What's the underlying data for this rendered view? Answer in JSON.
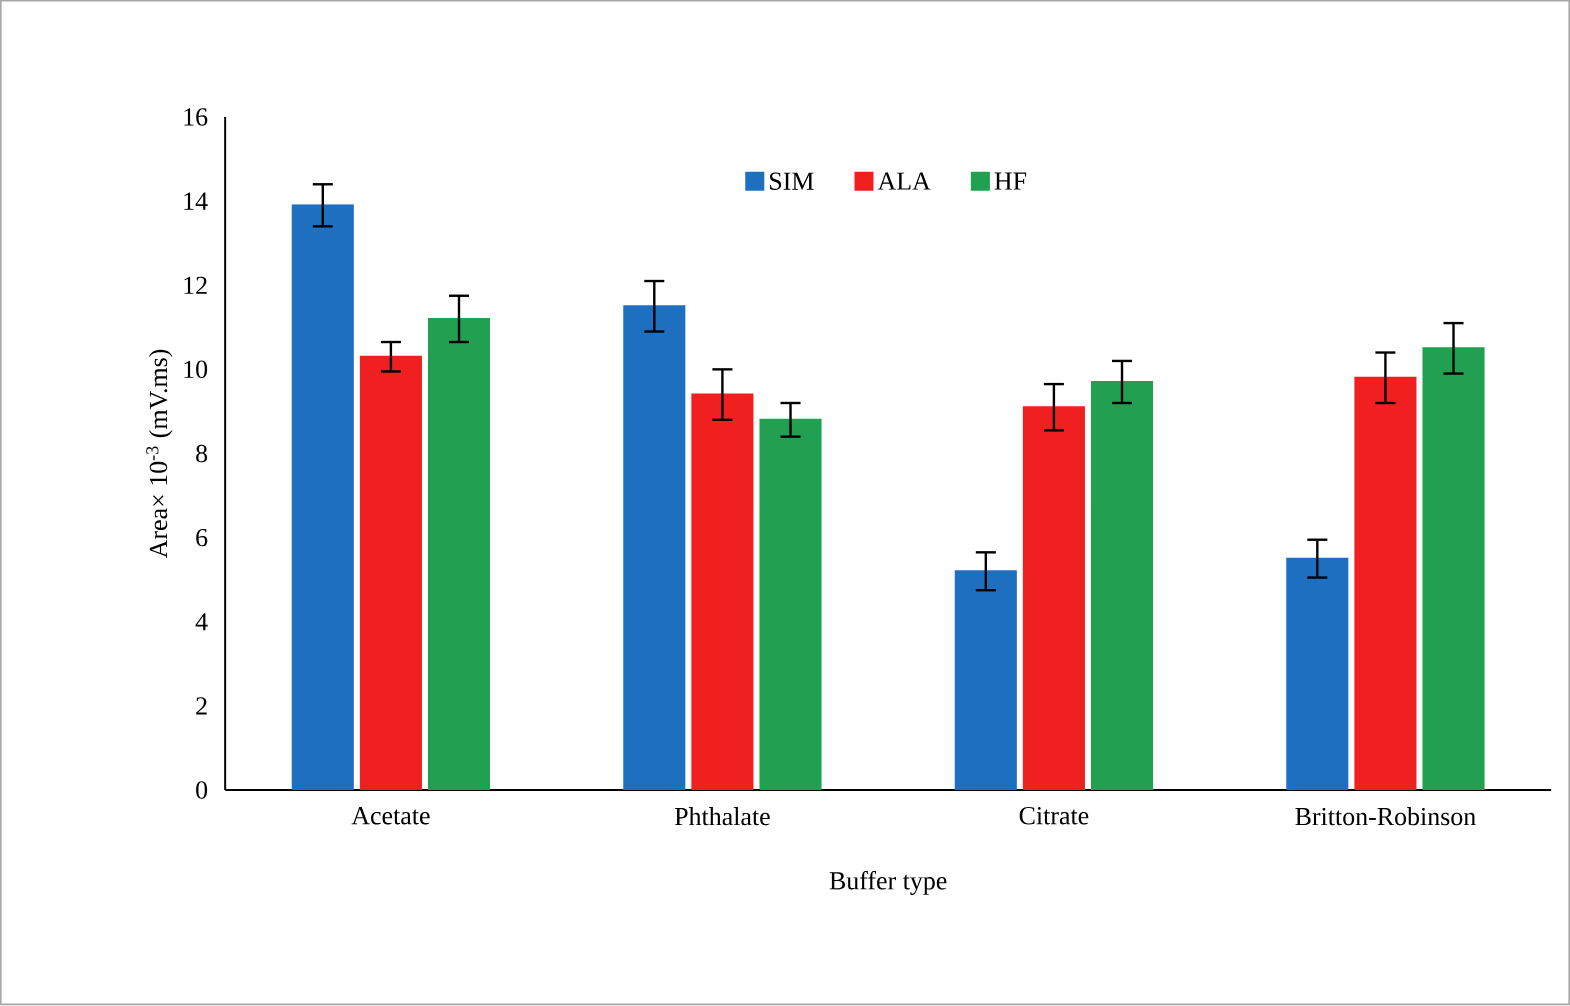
{
  "chart_data": {
    "type": "bar",
    "xlabel": "Buffer type",
    "ylabel": "Area× 10$^{-3}$ (mV.ms)",
    "categories": [
      "Acetate",
      "Phthalate",
      "Citrate",
      "Britton-Robinson"
    ],
    "series": [
      {
        "name": "SIM",
        "color": "#1f6fc0",
        "values": [
          13.9,
          11.5,
          5.2,
          5.5
        ],
        "errors": [
          0.5,
          0.6,
          0.45,
          0.45
        ]
      },
      {
        "name": "ALA",
        "color": "#f02020",
        "values": [
          10.3,
          9.4,
          9.1,
          9.8
        ],
        "errors": [
          0.35,
          0.6,
          0.55,
          0.6
        ]
      },
      {
        "name": "HF",
        "color": "#20a050",
        "values": [
          11.2,
          8.8,
          9.7,
          10.5
        ],
        "errors": [
          0.55,
          0.4,
          0.5,
          0.6
        ]
      }
    ],
    "ylim": [
      0,
      16
    ],
    "yticks": [
      0,
      2,
      4,
      6,
      8,
      10,
      12,
      14,
      16
    ],
    "grid": false,
    "legend": "top"
  }
}
